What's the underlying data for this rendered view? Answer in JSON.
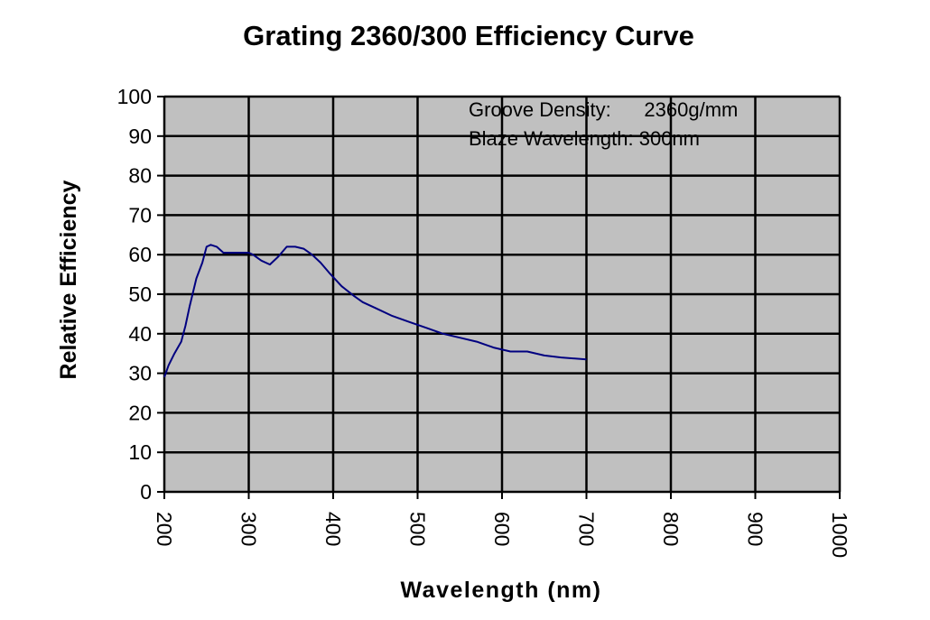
{
  "chart_data": {
    "type": "line",
    "title": "Grating 2360/300 Efficiency Curve",
    "xlabel": "Wavelength (nm)",
    "ylabel": "Relative Efficiency",
    "xlim": [
      200,
      1000
    ],
    "ylim": [
      0,
      100
    ],
    "xticks": [
      200,
      300,
      400,
      500,
      600,
      700,
      800,
      900,
      1000
    ],
    "yticks": [
      0,
      10,
      20,
      30,
      40,
      50,
      60,
      70,
      80,
      90,
      100
    ],
    "grid": true,
    "plot_background": "#c0c0c0",
    "series_color": "#000080",
    "annotations": [
      "Groove Density:      2360g/mm",
      "Blaze Wavelength: 300nm"
    ],
    "series": [
      {
        "x": [
          200,
          205,
          212,
          220,
          225,
          230,
          238,
          245,
          250,
          255,
          262,
          270,
          280,
          290,
          300,
          305,
          315,
          325,
          335,
          345,
          355,
          365,
          375,
          385,
          395,
          410,
          425,
          435,
          450,
          470,
          490,
          510,
          530,
          550,
          570,
          590,
          610,
          630,
          650,
          670,
          700
        ],
        "y": [
          29,
          32,
          35,
          38,
          42,
          47,
          54,
          58,
          62,
          62.5,
          62,
          60.5,
          60.5,
          60.5,
          60.5,
          60,
          58.5,
          57.5,
          59.5,
          62,
          62,
          61.5,
          60,
          58,
          55.5,
          52,
          49.5,
          48,
          46.5,
          44.5,
          43,
          41.5,
          40,
          39,
          38,
          36.5,
          35.5,
          35.5,
          34.5,
          34,
          33.5
        ]
      }
    ]
  }
}
